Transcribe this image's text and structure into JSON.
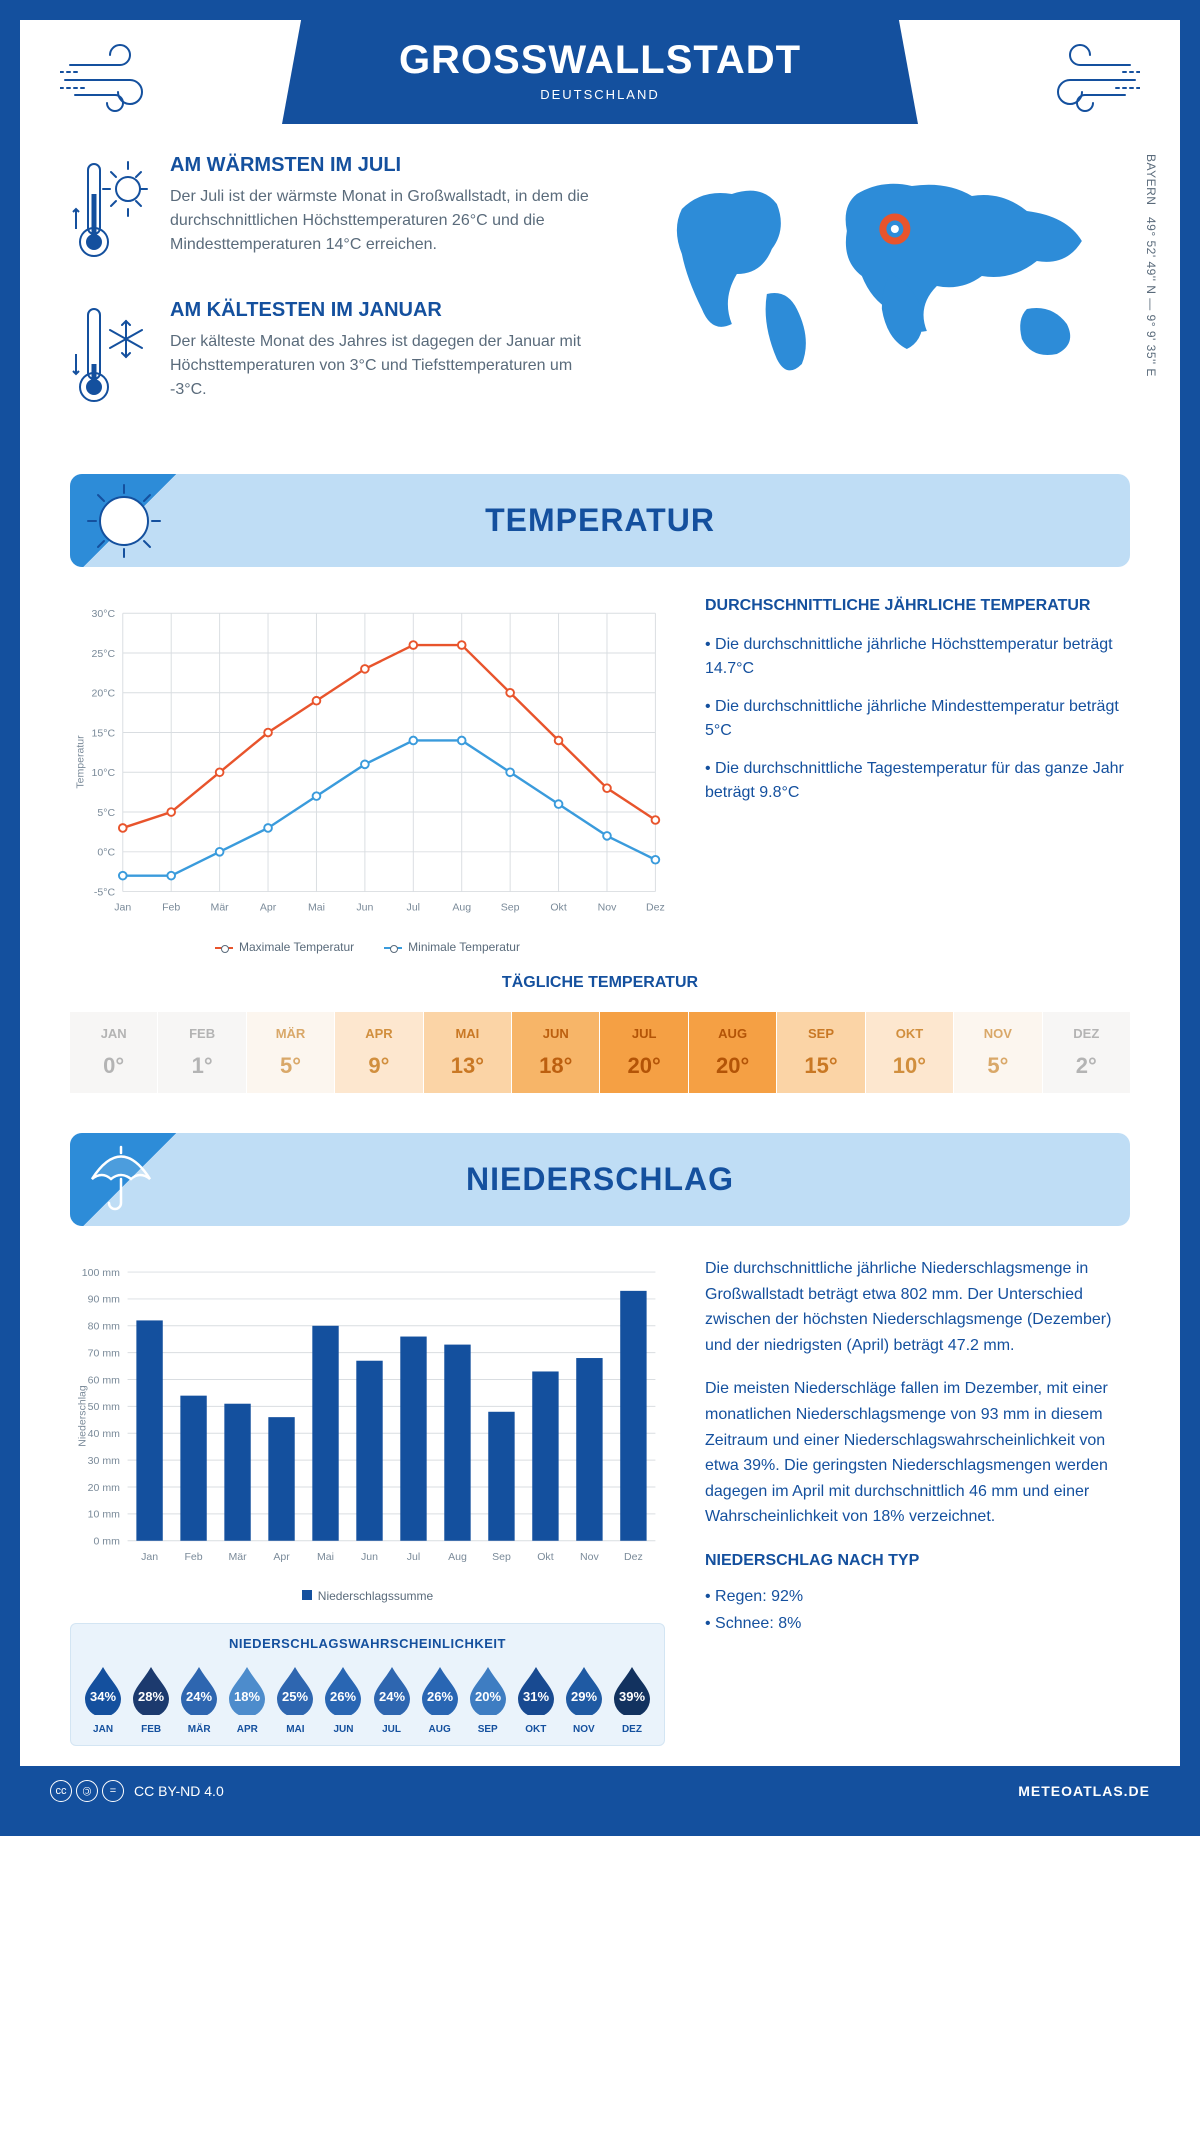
{
  "header": {
    "city": "GROSSWALLSTADT",
    "country": "DEUTSCHLAND"
  },
  "coords": {
    "text": "49° 52' 49'' N — 9° 9' 35'' E",
    "region": "BAYERN"
  },
  "facts": {
    "warm": {
      "title": "AM WÄRMSTEN IM JULI",
      "text": "Der Juli ist der wärmste Monat in Großwallstadt, in dem die durchschnittlichen Höchsttemperaturen 26°C und die Mindesttemperaturen 14°C erreichen."
    },
    "cold": {
      "title": "AM KÄLTESTEN IM JANUAR",
      "text": "Der kälteste Monat des Jahres ist dagegen der Januar mit Höchsttemperaturen von 3°C und Tiefsttemperaturen um -3°C."
    }
  },
  "sections": {
    "temperature": "TEMPERATUR",
    "precip": "NIEDERSCHLAG"
  },
  "months_short": [
    "Jan",
    "Feb",
    "Mär",
    "Apr",
    "Mai",
    "Jun",
    "Jul",
    "Aug",
    "Sep",
    "Okt",
    "Nov",
    "Dez"
  ],
  "months_upper": [
    "JAN",
    "FEB",
    "MÄR",
    "APR",
    "MAI",
    "JUN",
    "JUL",
    "AUG",
    "SEP",
    "OKT",
    "NOV",
    "DEZ"
  ],
  "temp_chart": {
    "type": "line",
    "ylabel": "Temperatur",
    "ylim": [
      -5,
      30
    ],
    "ytick_step": 5,
    "grid_color": "#d9dde1",
    "series": [
      {
        "name": "Maximale Temperatur",
        "color": "#e8542c",
        "values": [
          3,
          5,
          10,
          15,
          19,
          23,
          26,
          26,
          20,
          14,
          8,
          4
        ]
      },
      {
        "name": "Minimale Temperatur",
        "color": "#3a9bdc",
        "values": [
          -3,
          -3,
          0,
          3,
          7,
          11,
          14,
          14,
          10,
          6,
          2,
          -1
        ]
      }
    ],
    "legend_labels": {
      "max": "Maximale Temperatur",
      "min": "Minimale Temperatur"
    }
  },
  "temp_text": {
    "heading": "DURCHSCHNITTLICHE JÄHRLICHE TEMPERATUR",
    "lines": [
      "• Die durchschnittliche jährliche Höchsttemperatur beträgt 14.7°C",
      "• Die durchschnittliche jährliche Mindesttemperatur beträgt 5°C",
      "• Die durchschnittliche Tagestemperatur für das ganze Jahr beträgt 9.8°C"
    ]
  },
  "daily_temp": {
    "title": "TÄGLICHE TEMPERATUR",
    "values": [
      0,
      1,
      5,
      9,
      13,
      18,
      20,
      20,
      15,
      10,
      5,
      2
    ],
    "bg_colors": [
      "#f7f6f5",
      "#f7f6f5",
      "#fcf6ef",
      "#fde7cf",
      "#fbd4a6",
      "#f7b568",
      "#f5a044",
      "#f5a044",
      "#fbd4a6",
      "#fde7cf",
      "#fcf6ef",
      "#f7f6f5"
    ],
    "text_colors": [
      "#b4b4b4",
      "#b4b4b4",
      "#d9a869",
      "#d18f3e",
      "#c97824",
      "#bc5f0f",
      "#b35407",
      "#b35407",
      "#c97824",
      "#d18f3e",
      "#d9a869",
      "#b4b4b4"
    ]
  },
  "precip_chart": {
    "type": "bar",
    "ylabel": "Niederschlag",
    "ylim": [
      0,
      100
    ],
    "ytick_step": 10,
    "bar_color": "#14509e",
    "grid_color": "#d9dde1",
    "legend": "Niederschlagssumme",
    "values": [
      82,
      54,
      51,
      46,
      80,
      67,
      76,
      73,
      48,
      63,
      68,
      93
    ]
  },
  "precip_text": {
    "p1": "Die durchschnittliche jährliche Niederschlagsmenge in Großwallstadt beträgt etwa 802 mm. Der Unterschied zwischen der höchsten Niederschlagsmenge (Dezember) und der niedrigsten (April) beträgt 47.2 mm.",
    "p2": "Die meisten Niederschläge fallen im Dezember, mit einer monatlichen Niederschlagsmenge von 93 mm in diesem Zeitraum und einer Niederschlagswahrscheinlichkeit von etwa 39%. Die geringsten Niederschlagsmengen werden dagegen im April mit durchschnittlich 46 mm und einer Wahrscheinlichkeit von 18% verzeichnet.",
    "type_heading": "NIEDERSCHLAG NACH TYP",
    "type_lines": [
      "• Regen: 92%",
      "• Schnee: 8%"
    ]
  },
  "precip_prob": {
    "title": "NIEDERSCHLAGSWAHRSCHEINLICHKEIT",
    "values": [
      34,
      28,
      24,
      18,
      25,
      26,
      24,
      26,
      20,
      31,
      29,
      39
    ],
    "drop_colors": [
      "#14509e",
      "#1c3a6e",
      "#2e66b0",
      "#4d8ccc",
      "#2e66b0",
      "#2966b3",
      "#2e66b0",
      "#2966b3",
      "#3e7dc2",
      "#184a91",
      "#1f5aa3",
      "#12325f"
    ]
  },
  "footer": {
    "license": "CC BY-ND 4.0",
    "site": "METEOATLAS.DE"
  },
  "colors": {
    "brand": "#14509e",
    "accent_blue": "#2d8cd8",
    "light_blue": "#bfddf5"
  }
}
